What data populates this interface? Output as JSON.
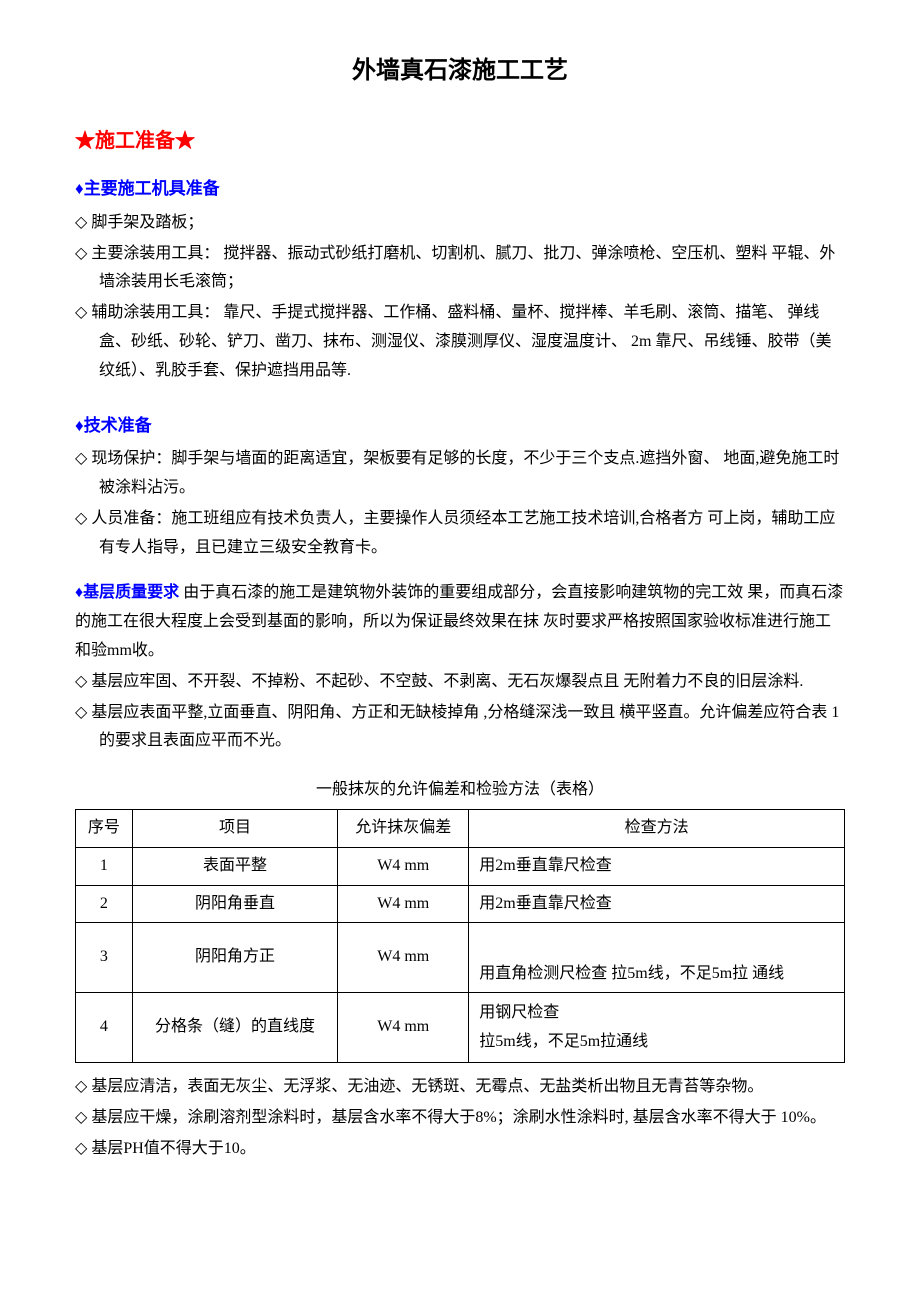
{
  "title": "外墙真石漆施工工艺",
  "section1": {
    "header": "★施工准备★",
    "sub1": {
      "header": "主要施工机具准备",
      "item1": "脚手架及踏板；",
      "item2": "主要涂装用工具：  搅拌器、振动式砂纸打磨机、切割机、腻刀、批刀、弹涂喷枪、空压机、塑料 平辊、外墙涂装用长毛滚筒；",
      "item3": "辅助涂装用工具：  靠尺、手提式搅拌器、工作桶、盛料桶、量杯、搅拌棒、羊毛刷、滚筒、描笔、 弹线盒、砂纸、砂轮、铲刀、凿刀、抹布、测湿仪、漆膜测厚仪、湿度温度计、 2m 靠尺、吊线锤、胶带（美纹纸）、乳胶手套、保护遮挡用品等."
    },
    "sub2": {
      "header": "技术准备",
      "item1": "现场保护：脚手架与墙面的距离适宜，架板要有足够的长度，不少于三个支点.遮挡外窗、 地面,避免施工时被涂料沾污。",
      "item2": "人员准备：施工班组应有技术负责人，主要操作人员须经本工艺施工技术培训,合格者方 可上岗，辅助工应有专人指导，且已建立三级安全教育卡。"
    },
    "sub3": {
      "header": "基层质量要求",
      "intro": " 由于真石漆的施工是建筑物外装饰的重要组成部分，会直接影响建筑物的完工效 果，而真石漆的施工在很大程度上会受到基面的影响，所以为保证最终效果在抹 灰时要求严格按照国家验收标准进行施工和验mm收。",
      "item1": "基层应牢固、不开裂、不掉粉、不起砂、不空鼓、不剥离、无石灰爆裂点且 无附着力不良的旧层涂料.",
      "item2": "基层应表面平整,立面垂直、阴阳角、方正和无缺棱掉角 ,分格缝深浅一致且 横平竖直。允许偏差应符合表 1 的要求且表面应平而不光。"
    }
  },
  "table": {
    "caption": "一般抹灰的允许偏差和检验方法（表格）",
    "headers": {
      "col1": "序号",
      "col2": "项目",
      "col3": "允许抹灰偏差",
      "col4": "检查方法"
    },
    "rows": {
      "r1": {
        "num": "1",
        "item": "表面平整",
        "tol": "W4 mm",
        "method": "用2m垂直靠尺检查"
      },
      "r2": {
        "num": "2",
        "item": "阴阳角垂直",
        "tol": "W4 mm",
        "method": "用2m垂直靠尺检查"
      },
      "r3": {
        "num": "3",
        "item": "阴阳角方正",
        "tol": "W4 mm",
        "method": "用直角检测尺检查 拉5m线，不足5m拉 通线"
      },
      "r4": {
        "num": "4",
        "item": "分格条（缝）的直线度",
        "tol": "W4 mm",
        "method_l1": "用钢尺检查",
        "method_l2": "拉5m线，不足5m拉通线"
      }
    }
  },
  "notes": {
    "n1": "基层应清洁，表面无灰尘、无浮浆、无油迹、无锈斑、无霉点、无盐类析出物且无青苔等杂物。",
    "n2": "基层应干燥，涂刷溶剂型涂料时，基层含水率不得大于8%；涂刷水性涂料时, 基层含水率不得大于 10%。",
    "n3": "基层PH值不得大于10。"
  },
  "style": {
    "title_color": "#000000",
    "red": "#ff0000",
    "blue": "#0000ff",
    "text_color": "#000000",
    "bg": "#ffffff",
    "border_color": "#000000",
    "body_font_size": 16,
    "title_font_size": 24,
    "section_font_size": 20,
    "sub_font_size": 17
  }
}
